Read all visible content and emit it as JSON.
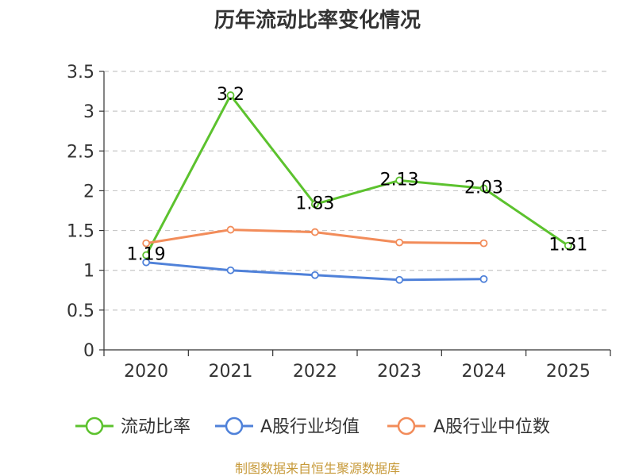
{
  "chart_data": {
    "type": "line",
    "title": "历年流动比率变化情况",
    "categories": [
      "2020",
      "2021",
      "2022",
      "2023",
      "2024",
      "2025"
    ],
    "ylim": [
      0,
      3.5
    ],
    "yticks": [
      "0",
      "0.5",
      "1",
      "1.5",
      "2",
      "2.5",
      "3",
      "3.5"
    ],
    "grid": true,
    "legend_position": "bottom",
    "series": [
      {
        "name": "流动比率",
        "color": "#5cc22e",
        "values": [
          1.19,
          3.2,
          1.83,
          2.13,
          2.03,
          1.31
        ],
        "labels": [
          "1.19",
          "3.2",
          "1.83",
          "2.13",
          "2.03",
          "1.31"
        ]
      },
      {
        "name": "A股行业均值",
        "color": "#4f81d9",
        "values": [
          1.1,
          1.0,
          0.94,
          0.88,
          0.89,
          null
        ]
      },
      {
        "name": "A股行业中位数",
        "color": "#f28c5a",
        "values": [
          1.34,
          1.51,
          1.48,
          1.35,
          1.34,
          null
        ]
      }
    ],
    "source": "制图数据来自恒生聚源数据库"
  }
}
